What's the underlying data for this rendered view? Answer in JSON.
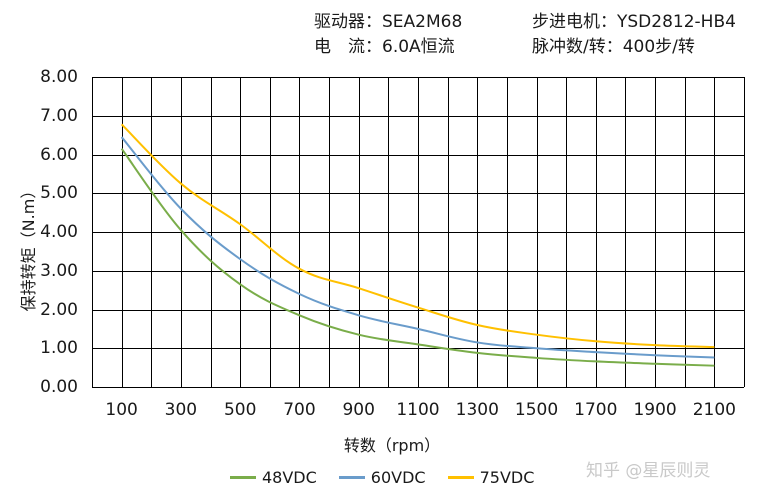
{
  "header": {
    "driver_line": "驱动器：SEA2M68",
    "current_line": "电　流：6.0A恒流",
    "motor_line": "步进电机：YSD2812-HB4",
    "pulse_line": "脉冲数/转：400步/转"
  },
  "watermark": "知乎 @星辰则灵",
  "chart_data": {
    "type": "line",
    "xlabel": "转数（rpm）",
    "ylabel": "保持转矩（N.m）",
    "x": [
      100,
      300,
      500,
      700,
      900,
      1100,
      1300,
      1500,
      1700,
      1900,
      2100
    ],
    "x_tick_labels": [
      "100",
      "300",
      "500",
      "700",
      "900",
      "1100",
      "1300",
      "1500",
      "1700",
      "1900",
      "2100"
    ],
    "xlim": [
      0,
      2200
    ],
    "ylim": [
      0,
      8
    ],
    "y_ticks": [
      0,
      1,
      2,
      3,
      4,
      5,
      6,
      7,
      8
    ],
    "y_tick_labels": [
      "0.00",
      "1.00",
      "2.00",
      "3.00",
      "4.00",
      "5.00",
      "6.00",
      "7.00",
      "8.00"
    ],
    "grid": true,
    "legend_position": "bottom",
    "series": [
      {
        "name": "48VDC",
        "color": "#7aad4a",
        "values": [
          6.15,
          4.05,
          2.65,
          1.85,
          1.35,
          1.1,
          0.88,
          0.75,
          0.66,
          0.6,
          0.55
        ]
      },
      {
        "name": "60VDC",
        "color": "#6a9ccb",
        "values": [
          6.45,
          4.6,
          3.3,
          2.4,
          1.85,
          1.5,
          1.15,
          1.0,
          0.9,
          0.82,
          0.76
        ]
      },
      {
        "name": "75VDC",
        "color": "#ffc000",
        "values": [
          6.78,
          5.25,
          4.2,
          3.05,
          2.55,
          2.05,
          1.6,
          1.35,
          1.18,
          1.08,
          1.03
        ]
      }
    ]
  }
}
